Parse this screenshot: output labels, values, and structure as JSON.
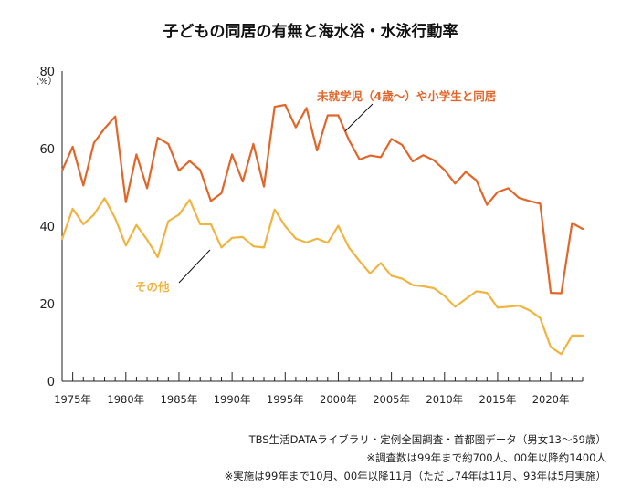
{
  "title": "子どもの同居の有無と海水浴・水泳行動率",
  "y_unit": "（%）",
  "colors": {
    "series_a": "#e0662a",
    "series_b": "#f0b441",
    "axis": "#222222"
  },
  "footnotes": [
    "TBS生活DATAライブラリ・定例全国調査・首都圏データ（男女13～59歳）",
    "※調査数は99年まで約700人、00年以降約1400人",
    "※実施は99年まで10月、00年以降11月（ただし74年は11月、93年は5月実施）"
  ],
  "chart_data": {
    "type": "line",
    "title": "子どもの同居の有無と海水浴・水泳行動率",
    "xlabel": "",
    "ylabel": "（%）",
    "xlim": [
      1974,
      2023
    ],
    "ylim": [
      0,
      80
    ],
    "yticks": [
      0,
      20,
      40,
      60,
      80
    ],
    "xticks": [
      1975,
      1980,
      1985,
      1990,
      1995,
      2000,
      2005,
      2010,
      2015,
      2020
    ],
    "xtick_labels": [
      "1975年",
      "1980年",
      "1985年",
      "1990年",
      "1995年",
      "2000年",
      "2005年",
      "2010年",
      "2015年",
      "2020年"
    ],
    "grid": false,
    "x": [
      1974,
      1975,
      1976,
      1977,
      1978,
      1979,
      1980,
      1981,
      1982,
      1983,
      1984,
      1985,
      1986,
      1987,
      1988,
      1989,
      1990,
      1991,
      1992,
      1993,
      1994,
      1995,
      1996,
      1997,
      1998,
      1999,
      2000,
      2001,
      2002,
      2003,
      2004,
      2005,
      2006,
      2007,
      2008,
      2009,
      2010,
      2011,
      2012,
      2013,
      2014,
      2015,
      2016,
      2017,
      2018,
      2019,
      2020,
      2021,
      2022,
      2023
    ],
    "series": [
      {
        "name": "未就学児（4歳～）や小学生と同居",
        "label_text": "未就学児（4歳～）や小学生と同居",
        "values": [
          54.3,
          60.5,
          50.5,
          61.5,
          65.2,
          68.3,
          46.2,
          58.5,
          49.8,
          62.8,
          61.2,
          54.3,
          56.8,
          54.5,
          46.5,
          48.5,
          58.5,
          51.5,
          61.2,
          50.2,
          70.8,
          71.3,
          65.5,
          70.5,
          59.5,
          68.6,
          68.6,
          62.2,
          57.2,
          58.2,
          57.8,
          62.5,
          61.0,
          56.7,
          58.3,
          57.0,
          54.5,
          51.0,
          54.0,
          51.8,
          45.5,
          48.8,
          49.8,
          47.3,
          46.5,
          45.8,
          22.8,
          22.7,
          40.8,
          39.3
        ],
        "color": "#e0662a"
      },
      {
        "name": "その他",
        "label_text": "その他",
        "values": [
          36.7,
          44.5,
          40.5,
          43.0,
          47.2,
          42.0,
          35.0,
          40.3,
          36.5,
          32.0,
          41.3,
          43.0,
          46.8,
          40.5,
          40.5,
          34.5,
          37.0,
          37.2,
          34.8,
          34.5,
          44.3,
          40.0,
          36.8,
          35.8,
          36.8,
          35.7,
          40.1,
          34.5,
          31.0,
          27.8,
          30.5,
          27.2,
          26.5,
          24.8,
          24.5,
          24.0,
          22.0,
          19.2,
          21.2,
          23.2,
          22.8,
          19.0,
          19.2,
          19.5,
          18.3,
          16.3,
          8.8,
          7.0,
          11.8,
          11.8
        ],
        "color": "#f0b441"
      }
    ]
  }
}
